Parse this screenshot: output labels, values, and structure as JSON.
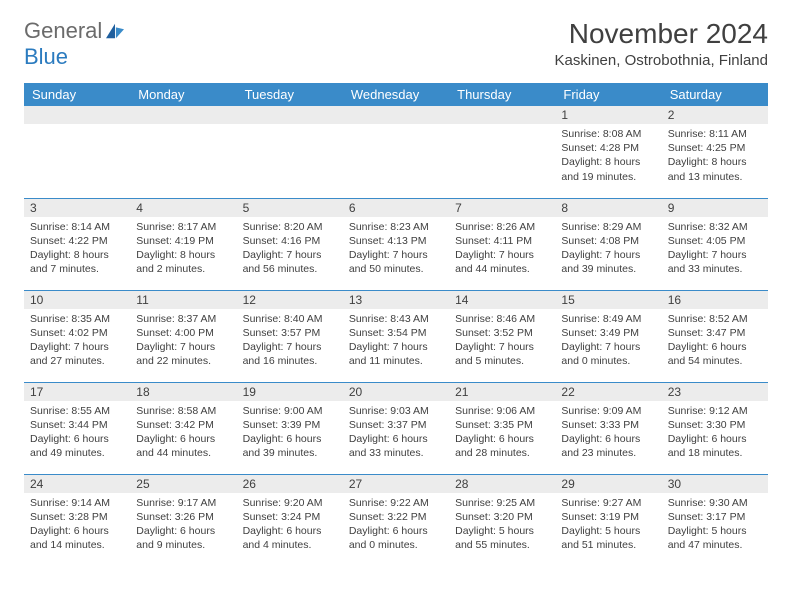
{
  "logo": {
    "general": "General",
    "blue": "Blue"
  },
  "title": "November 2024",
  "location": "Kaskinen, Ostrobothnia, Finland",
  "colors": {
    "header_bg": "#3a8bc9",
    "header_text": "#ffffff",
    "daynum_bg": "#ececec",
    "border": "#3a8bc9",
    "text": "#404040",
    "logo_gray": "#6b6b6b",
    "logo_blue": "#2b7bbf",
    "page_bg": "#ffffff"
  },
  "weekdays": [
    "Sunday",
    "Monday",
    "Tuesday",
    "Wednesday",
    "Thursday",
    "Friday",
    "Saturday"
  ],
  "weeks": [
    [
      null,
      null,
      null,
      null,
      null,
      {
        "n": "1",
        "sunrise": "8:08 AM",
        "sunset": "4:28 PM",
        "dl": "8 hours and 19 minutes."
      },
      {
        "n": "2",
        "sunrise": "8:11 AM",
        "sunset": "4:25 PM",
        "dl": "8 hours and 13 minutes."
      }
    ],
    [
      {
        "n": "3",
        "sunrise": "8:14 AM",
        "sunset": "4:22 PM",
        "dl": "8 hours and 7 minutes."
      },
      {
        "n": "4",
        "sunrise": "8:17 AM",
        "sunset": "4:19 PM",
        "dl": "8 hours and 2 minutes."
      },
      {
        "n": "5",
        "sunrise": "8:20 AM",
        "sunset": "4:16 PM",
        "dl": "7 hours and 56 minutes."
      },
      {
        "n": "6",
        "sunrise": "8:23 AM",
        "sunset": "4:13 PM",
        "dl": "7 hours and 50 minutes."
      },
      {
        "n": "7",
        "sunrise": "8:26 AM",
        "sunset": "4:11 PM",
        "dl": "7 hours and 44 minutes."
      },
      {
        "n": "8",
        "sunrise": "8:29 AM",
        "sunset": "4:08 PM",
        "dl": "7 hours and 39 minutes."
      },
      {
        "n": "9",
        "sunrise": "8:32 AM",
        "sunset": "4:05 PM",
        "dl": "7 hours and 33 minutes."
      }
    ],
    [
      {
        "n": "10",
        "sunrise": "8:35 AM",
        "sunset": "4:02 PM",
        "dl": "7 hours and 27 minutes."
      },
      {
        "n": "11",
        "sunrise": "8:37 AM",
        "sunset": "4:00 PM",
        "dl": "7 hours and 22 minutes."
      },
      {
        "n": "12",
        "sunrise": "8:40 AM",
        "sunset": "3:57 PM",
        "dl": "7 hours and 16 minutes."
      },
      {
        "n": "13",
        "sunrise": "8:43 AM",
        "sunset": "3:54 PM",
        "dl": "7 hours and 11 minutes."
      },
      {
        "n": "14",
        "sunrise": "8:46 AM",
        "sunset": "3:52 PM",
        "dl": "7 hours and 5 minutes."
      },
      {
        "n": "15",
        "sunrise": "8:49 AM",
        "sunset": "3:49 PM",
        "dl": "7 hours and 0 minutes."
      },
      {
        "n": "16",
        "sunrise": "8:52 AM",
        "sunset": "3:47 PM",
        "dl": "6 hours and 54 minutes."
      }
    ],
    [
      {
        "n": "17",
        "sunrise": "8:55 AM",
        "sunset": "3:44 PM",
        "dl": "6 hours and 49 minutes."
      },
      {
        "n": "18",
        "sunrise": "8:58 AM",
        "sunset": "3:42 PM",
        "dl": "6 hours and 44 minutes."
      },
      {
        "n": "19",
        "sunrise": "9:00 AM",
        "sunset": "3:39 PM",
        "dl": "6 hours and 39 minutes."
      },
      {
        "n": "20",
        "sunrise": "9:03 AM",
        "sunset": "3:37 PM",
        "dl": "6 hours and 33 minutes."
      },
      {
        "n": "21",
        "sunrise": "9:06 AM",
        "sunset": "3:35 PM",
        "dl": "6 hours and 28 minutes."
      },
      {
        "n": "22",
        "sunrise": "9:09 AM",
        "sunset": "3:33 PM",
        "dl": "6 hours and 23 minutes."
      },
      {
        "n": "23",
        "sunrise": "9:12 AM",
        "sunset": "3:30 PM",
        "dl": "6 hours and 18 minutes."
      }
    ],
    [
      {
        "n": "24",
        "sunrise": "9:14 AM",
        "sunset": "3:28 PM",
        "dl": "6 hours and 14 minutes."
      },
      {
        "n": "25",
        "sunrise": "9:17 AM",
        "sunset": "3:26 PM",
        "dl": "6 hours and 9 minutes."
      },
      {
        "n": "26",
        "sunrise": "9:20 AM",
        "sunset": "3:24 PM",
        "dl": "6 hours and 4 minutes."
      },
      {
        "n": "27",
        "sunrise": "9:22 AM",
        "sunset": "3:22 PM",
        "dl": "6 hours and 0 minutes."
      },
      {
        "n": "28",
        "sunrise": "9:25 AM",
        "sunset": "3:20 PM",
        "dl": "5 hours and 55 minutes."
      },
      {
        "n": "29",
        "sunrise": "9:27 AM",
        "sunset": "3:19 PM",
        "dl": "5 hours and 51 minutes."
      },
      {
        "n": "30",
        "sunrise": "9:30 AM",
        "sunset": "3:17 PM",
        "dl": "5 hours and 47 minutes."
      }
    ]
  ],
  "labels": {
    "sunrise": "Sunrise: ",
    "sunset": "Sunset: ",
    "daylight": "Daylight: "
  }
}
